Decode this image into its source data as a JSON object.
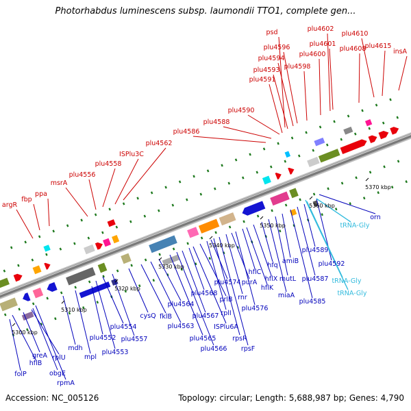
{
  "title": "Photorhabdus luminescens subsp. laumondii TTO1, complete gen...",
  "footer": {
    "accession": "Accession: NC_005126",
    "stats": "Topology: circular; Length: 5,688,987 bp; Genes: 4,790"
  },
  "colors": {
    "forward_cds": "#e8000b",
    "reverse_cds": "#1414d2",
    "forward_label": "#cc0000",
    "reverse_label": "#0000bb",
    "trna_label": "#33bbdd",
    "backbone": "#888888",
    "tick": "#1f7a1f"
  },
  "kbp_ticks": [
    {
      "label": "5300 kbp"
    },
    {
      "label": "5310 kbp"
    },
    {
      "label": "5320 kbp"
    },
    {
      "label": "5330 kbp"
    },
    {
      "label": "5340 kbp"
    },
    {
      "label": "5350 kbp"
    },
    {
      "label": "5360 kbp"
    },
    {
      "label": "5370 kbp"
    }
  ],
  "forward_labels": [
    {
      "text": "argR"
    },
    {
      "text": "fbp"
    },
    {
      "text": "ppa"
    },
    {
      "text": "msrA"
    },
    {
      "text": "plu4556"
    },
    {
      "text": "plu4558"
    },
    {
      "text": "ISPlu3C"
    },
    {
      "text": "plu4562"
    },
    {
      "text": "plu4586"
    },
    {
      "text": "plu4588"
    },
    {
      "text": "plu4590"
    },
    {
      "text": "plu4591"
    },
    {
      "text": "plu4593"
    },
    {
      "text": "plu4594"
    },
    {
      "text": "plu4596"
    },
    {
      "text": "psd"
    },
    {
      "text": "plu4598"
    },
    {
      "text": "plu4600"
    },
    {
      "text": "plu4601"
    },
    {
      "text": "plu4602"
    },
    {
      "text": "plu4608"
    },
    {
      "text": "plu4610"
    },
    {
      "text": "plu4615"
    },
    {
      "text": "insA"
    }
  ],
  "reverse_labels": [
    {
      "text": "folP"
    },
    {
      "text": "hflB"
    },
    {
      "text": "greA"
    },
    {
      "text": "rplU"
    },
    {
      "text": "obgE"
    },
    {
      "text": "rpmA"
    },
    {
      "text": "mdh"
    },
    {
      "text": "mpl"
    },
    {
      "text": "plu4552"
    },
    {
      "text": "plu4553"
    },
    {
      "text": "plu4554"
    },
    {
      "text": "plu4557"
    },
    {
      "text": "cysQ"
    },
    {
      "text": "fklB"
    },
    {
      "text": "plu4563"
    },
    {
      "text": "plu4564"
    },
    {
      "text": "plu4565"
    },
    {
      "text": "plu4566"
    },
    {
      "text": "plu4567"
    },
    {
      "text": "plu4568"
    },
    {
      "text": "ISPlu6A"
    },
    {
      "text": "prlB"
    },
    {
      "text": "rplI"
    },
    {
      "text": "plu4574"
    },
    {
      "text": "rpsR"
    },
    {
      "text": "rpsF"
    },
    {
      "text": "rnr"
    },
    {
      "text": "purA"
    },
    {
      "text": "plu4576"
    },
    {
      "text": "hflC"
    },
    {
      "text": "hflK"
    },
    {
      "text": "hflX"
    },
    {
      "text": "hfq"
    },
    {
      "text": "miaA"
    },
    {
      "text": "mutL"
    },
    {
      "text": "amiB"
    },
    {
      "text": "plu4585"
    },
    {
      "text": "plu4587"
    },
    {
      "text": "plu4589"
    },
    {
      "text": "plu4592"
    },
    {
      "text": "orn"
    }
  ],
  "trna_labels": [
    {
      "text": "tRNA-Gly"
    },
    {
      "text": "tRNA-Gly"
    },
    {
      "text": "tRNA-Gly"
    }
  ]
}
